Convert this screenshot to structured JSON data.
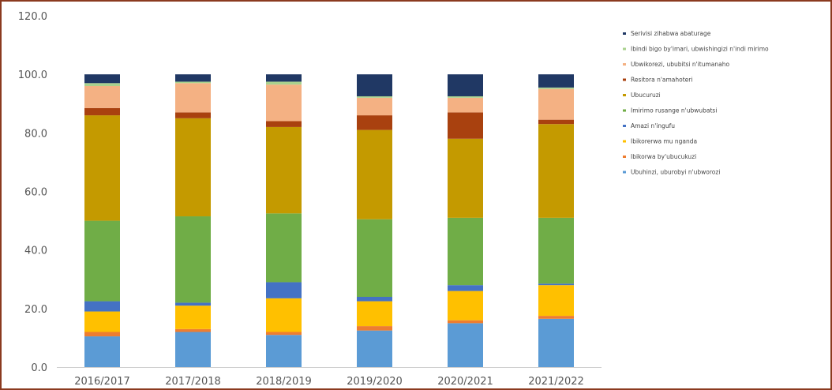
{
  "chart_data": {
    "type": "bar",
    "stacked": true,
    "categories": [
      "2016/2017",
      "2017/2018",
      "2018/2019",
      "2019/2020",
      "2020/2021",
      "2021/2022"
    ],
    "ylim": [
      0,
      120
    ],
    "yticks": [
      "0.0",
      "20.0",
      "40.0",
      "60.0",
      "80.0",
      "100.0",
      "120.0"
    ],
    "ytick_values": [
      0,
      20,
      40,
      60,
      80,
      100,
      120
    ],
    "grid": false,
    "legend_position": "right",
    "series": [
      {
        "name": "Ubuhinzi, uburobyi n'ubworozi",
        "color": "#5b9bd5",
        "values": [
          10.5,
          12.0,
          11.0,
          12.5,
          15.0,
          16.5
        ]
      },
      {
        "name": "Ibikorwa by'ubucukuzi",
        "color": "#ed7d31",
        "values": [
          1.5,
          1.0,
          1.0,
          1.5,
          1.0,
          1.0
        ]
      },
      {
        "name": "Ibikorerwa mu nganda",
        "color": "#ffc000",
        "values": [
          7.0,
          8.0,
          11.5,
          8.5,
          10.0,
          10.5
        ]
      },
      {
        "name": "Amazi n'ingufu",
        "color": "#4472c4",
        "values": [
          3.5,
          1.0,
          5.5,
          1.5,
          2.0,
          0.5
        ]
      },
      {
        "name": "Imirimo rusange n'ubwubatsi",
        "color": "#70ad47",
        "values": [
          27.5,
          29.5,
          23.5,
          26.5,
          23.0,
          22.5
        ]
      },
      {
        "name": "Ubucuruzi",
        "color": "#c49a00",
        "values": [
          36.0,
          33.5,
          29.5,
          30.5,
          27.0,
          32.0
        ]
      },
      {
        "name": "Resitora n'amahoteri",
        "color": "#a9410f",
        "values": [
          2.5,
          2.0,
          2.0,
          5.0,
          9.0,
          1.5
        ]
      },
      {
        "name": "Ubwikorezi, ububitsi n'itumanaho",
        "color": "#f4b183",
        "values": [
          7.5,
          10.0,
          12.5,
          6.0,
          5.0,
          10.5
        ]
      },
      {
        "name": "Ibindi bigo by'imari, ubwishingizi n'indi mirimo",
        "color": "#a9d18e",
        "values": [
          1.0,
          0.5,
          1.0,
          0.5,
          0.5,
          0.5
        ]
      },
      {
        "name": "Serivisi zihabwa abaturage",
        "color": "#203864",
        "values": [
          3.0,
          2.5,
          2.5,
          7.5,
          7.5,
          4.5
        ]
      }
    ]
  }
}
